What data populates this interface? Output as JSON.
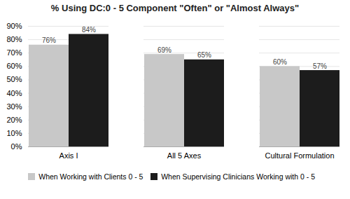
{
  "chart_data": {
    "type": "bar",
    "title": "% Using DC:0 - 5 Component \"Often\" or \"Almost Always\"",
    "categories": [
      "Axis I",
      "All 5 Axes",
      "Cultural Formulation"
    ],
    "series": [
      {
        "name": "When Working with Clients 0 - 5",
        "color": "#c8c8c8",
        "values": [
          76,
          69,
          60
        ],
        "value_labels": [
          "76%",
          "69%",
          "60%"
        ]
      },
      {
        "name": "When Supervising Clinicians Working with 0 - 5",
        "color": "#1c1c1c",
        "values": [
          84,
          65,
          57
        ],
        "value_labels": [
          "84%",
          "65%",
          "57%"
        ]
      }
    ],
    "ylim": [
      0,
      90
    ],
    "yticks": [
      {
        "value": 0,
        "label": "0%"
      },
      {
        "value": 10,
        "label": "10%"
      },
      {
        "value": 20,
        "label": "20%"
      },
      {
        "value": 30,
        "label": "30%"
      },
      {
        "value": 40,
        "label": "40%"
      },
      {
        "value": 50,
        "label": "50%"
      },
      {
        "value": 60,
        "label": "60%"
      },
      {
        "value": 70,
        "label": "70%"
      },
      {
        "value": 80,
        "label": "80%"
      },
      {
        "value": 90,
        "label": "90%"
      }
    ],
    "grid": true,
    "legend": "bottom",
    "data_labels": true
  }
}
